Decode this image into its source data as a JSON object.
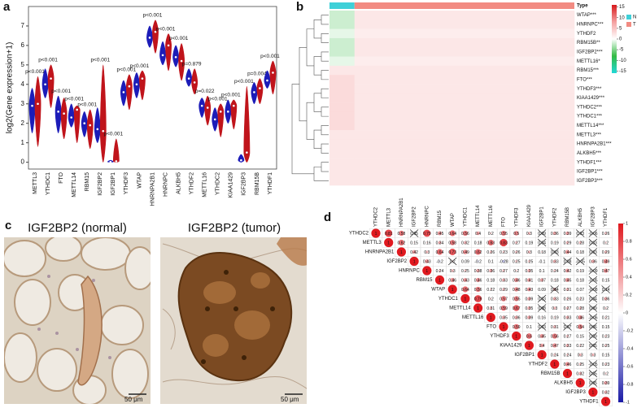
{
  "panel_labels": [
    "a",
    "b",
    "c",
    "d"
  ],
  "images": [
    {
      "title": "IGF2BP2 (normal)",
      "scale_bar": "50 μm"
    },
    {
      "title": "IGF2BP2 (tumor)",
      "scale_bar": "50 μm"
    }
  ],
  "chart_data": [
    {
      "type": "violin",
      "y_label": "log2(Gene expression+1)",
      "categories": [
        "METTL3",
        "YTHDC1",
        "FTO",
        "METTL14",
        "RBM15",
        "IGF2BP2",
        "IGF2BP1",
        "YTHDF3",
        "WTAP",
        "HNRNPA2B1",
        "HNRNPC",
        "ALKBH5",
        "YTHDF2",
        "METTL16",
        "YTHDC2",
        "KIAA1429",
        "IGF2BP3",
        "RBM15B",
        "YTHDF1"
      ],
      "annotations": [
        "p<0.001",
        "p<0.001",
        "p<0.001",
        "p<0.001",
        "p<0.001",
        "p<0.001",
        "p<0.001",
        "p<0.001",
        "p<0.001",
        "p<0.001",
        "p<0.001",
        "p<0.001",
        "p=0.879",
        "p=0.022",
        "p<0.001",
        "p<0.001",
        "p<0.001",
        "p=0.004",
        "p<0.001"
      ],
      "series": [
        {
          "color": "#1c1cb8",
          "values": [
            2.9,
            4.0,
            2.6,
            2.3,
            2.0,
            1.7,
            0.02,
            3.6,
            4.0,
            6.4,
            5.5,
            5.4,
            4.3,
            2.9,
            2.2,
            2.6,
            0.1,
            3.6,
            4.2
          ],
          "low": [
            1.5,
            3.3,
            1.5,
            1.8,
            1.3,
            1.0,
            0,
            2.9,
            3.3,
            5.9,
            5.0,
            4.9,
            3.9,
            2.3,
            1.6,
            2.0,
            0,
            3.0,
            3.8
          ],
          "high": [
            3.8,
            4.8,
            3.4,
            3.0,
            2.6,
            2.8,
            0.1,
            4.2,
            4.6,
            7.0,
            6.2,
            6.0,
            4.8,
            3.3,
            2.8,
            3.2,
            0.4,
            4.1,
            4.7
          ]
        },
        {
          "color": "#c0141b",
          "values": [
            3.0,
            4.3,
            2.5,
            2.7,
            1.9,
            1.6,
            0.05,
            3.9,
            4.3,
            6.7,
            6.0,
            5.2,
            4.1,
            2.8,
            2.6,
            2.9,
            0.5,
            3.8,
            4.6
          ],
          "low": [
            0.8,
            2.8,
            1.2,
            1.0,
            0.7,
            0.0,
            0,
            2.7,
            3.2,
            5.6,
            4.7,
            4.2,
            3.5,
            1.9,
            1.3,
            1.7,
            0,
            3.0,
            3.5
          ],
          "high": [
            4.4,
            5.0,
            3.3,
            2.9,
            2.7,
            5.0,
            1.2,
            4.5,
            4.7,
            7.3,
            6.6,
            6.1,
            4.8,
            3.4,
            3.0,
            3.2,
            3.9,
            4.3,
            5.2
          ]
        }
      ],
      "ylim": [
        -0.35,
        8
      ],
      "yticks": [
        0,
        1,
        2,
        3,
        4,
        5,
        6,
        7
      ]
    },
    {
      "type": "heatmap",
      "rows": [
        "WTAP***",
        "HNRNPC***",
        "YTHDF2",
        "RBM15B**",
        "IGF2BP2***",
        "METTL16*",
        "RBM15***",
        "FTO***",
        "YTHDF3***",
        "KIAA1429***",
        "YTHDC2***",
        "YTHDC1***",
        "METTL14***",
        "METTL3***",
        "HNRNPA2B1***",
        "ALKBH5***",
        "YTHDF1***",
        "IGF2BP1***",
        "IGF2BP3***"
      ],
      "column_groups": {
        "title": "Type",
        "names": [
          "N",
          "T"
        ],
        "colors": [
          "#3fd0d8",
          "#f28b82"
        ],
        "counts": [
          58,
          510
        ]
      },
      "values": [
        [
          -2,
          2
        ],
        [
          -2,
          2
        ],
        [
          -1,
          1.5
        ],
        [
          -2,
          2
        ],
        [
          -2,
          2
        ],
        [
          -1,
          1.5
        ],
        [
          2,
          2
        ],
        [
          3,
          2
        ],
        [
          3,
          2
        ],
        [
          3,
          2
        ],
        [
          3,
          2
        ],
        [
          3,
          2
        ],
        [
          3,
          2
        ],
        [
          2,
          2
        ],
        [
          2,
          2
        ],
        [
          2,
          2
        ],
        [
          2,
          2
        ],
        [
          2,
          2
        ],
        [
          2,
          2
        ]
      ],
      "zlim": [
        -16,
        16
      ],
      "zticks": [
        15,
        10,
        5,
        0,
        -5,
        -10,
        -15
      ],
      "colormap": [
        "#22d8d8",
        "#33bb44",
        "#ffffff",
        "#f4a0a0",
        "#d7191c"
      ]
    },
    {
      "type": "corrplot",
      "labels": [
        "YTHDC2",
        "METTL3",
        "HNRNPA2B1",
        "IGF2BP2",
        "HNRNPC",
        "RBM15",
        "WTAP",
        "YTHDC1",
        "METTL14",
        "METTL16",
        "FTO",
        "YTHDF3",
        "KIAA1429",
        "IGF2BP1",
        "YTHDF2",
        "RBM15B",
        "ALKBH5",
        "IGF2BP3",
        "YTHDF1"
      ],
      "values": [
        [
          1,
          0.81,
          0.58,
          0.05,
          0.79,
          0.45,
          0.64,
          0.56,
          0.4,
          0.2,
          0.55,
          0.5,
          0.3,
          0.09,
          0.36,
          0.39,
          0.03,
          -0.06,
          0.26
        ],
        [
          1,
          0.62,
          0.15,
          0.16,
          0.34,
          0.58,
          0.32,
          0.18,
          0.63,
          0.83,
          0.27,
          0.19,
          0.04,
          0.19,
          0.29,
          0.28,
          0.03,
          0.2
        ],
        [
          1,
          0.42,
          0.3,
          0.64,
          0.73,
          0.49,
          0.62,
          0.26,
          0.23,
          0.26,
          0.3,
          0.18,
          0.03,
          0.44,
          0.18,
          0.03,
          0.29
        ],
        [
          1,
          0.43,
          -0.2,
          0.2,
          0.09,
          -0.2,
          0.1,
          -0.28,
          0.25,
          0.25,
          -0.1,
          0.33,
          0.08,
          -0.05,
          0.36,
          0.49
        ],
        [
          1,
          0.24,
          0.3,
          0.25,
          0.38,
          0.36,
          0.27,
          0.2,
          0.35,
          0.1,
          0.24,
          0.42,
          0.19,
          -0.09,
          0.47
        ],
        [
          1,
          0.46,
          0.43,
          0.46,
          0.18,
          0.33,
          0.46,
          0.41,
          0.37,
          0.18,
          0.45,
          0.18,
          -0.05,
          0.15
        ],
        [
          1,
          0.64,
          0.56,
          0.22,
          0.29,
          0.48,
          0.43,
          0.09,
          0.34,
          0.31,
          0.07,
          -0.08,
          0.14
        ],
        [
          1,
          0.79,
          0.2,
          0.57,
          0.55,
          0.39,
          0.03,
          0.33,
          0.26,
          0.23,
          0.04,
          0.36
        ],
        [
          1,
          0.31,
          0.59,
          0.67,
          0.35,
          0.08,
          0.3,
          0.27,
          0.28,
          0.09,
          0.2
        ],
        [
          1,
          0.35,
          0.36,
          0.39,
          0.16,
          0.19,
          0.33,
          0.46,
          -0.06,
          0.21
        ],
        [
          1,
          0.59,
          0.1,
          0.03,
          0.31,
          0.07,
          0.54,
          0.06,
          0.15
        ],
        [
          1,
          0.6,
          0.45,
          0.56,
          0.27,
          0.15,
          0.09,
          0.23
        ],
        [
          1,
          0.4,
          0.47,
          0.33,
          0.22,
          0.05,
          0.25
        ],
        [
          1,
          0.24,
          0.24,
          0.3,
          0.3,
          0.15
        ],
        [
          1,
          0.46,
          0.25,
          -0.05,
          0.23
        ],
        [
          1,
          0.32,
          0.05,
          0.2
        ],
        [
          1,
          0.05,
          0.39
        ],
        [
          1,
          0.32
        ],
        [
          1
        ]
      ],
      "crossed": [
        [
          0,
          3
        ],
        [
          0,
          13
        ],
        [
          0,
          16
        ],
        [
          0,
          17
        ],
        [
          1,
          13
        ],
        [
          1,
          17
        ],
        [
          2,
          14
        ],
        [
          2,
          17
        ],
        [
          3,
          6
        ],
        [
          3,
          15
        ],
        [
          3,
          16
        ],
        [
          4,
          17
        ],
        [
          5,
          17
        ],
        [
          6,
          14
        ],
        [
          6,
          17
        ],
        [
          6,
          18
        ],
        [
          7,
          13
        ],
        [
          7,
          17
        ],
        [
          8,
          13
        ],
        [
          8,
          17
        ],
        [
          9,
          17
        ],
        [
          10,
          13
        ],
        [
          10,
          15
        ],
        [
          10,
          17
        ],
        [
          11,
          17
        ],
        [
          12,
          17
        ],
        [
          14,
          17
        ],
        [
          15,
          17
        ],
        [
          16,
          17
        ]
      ],
      "zlim": [
        -1,
        1
      ],
      "zticks": [
        1,
        0.8,
        0.6,
        0.4,
        0.2,
        0,
        -0.2,
        -0.4,
        -0.6,
        -0.8,
        -1
      ],
      "colormap": [
        "#1a1aa6",
        "#ffffff",
        "#e0191f"
      ]
    }
  ]
}
